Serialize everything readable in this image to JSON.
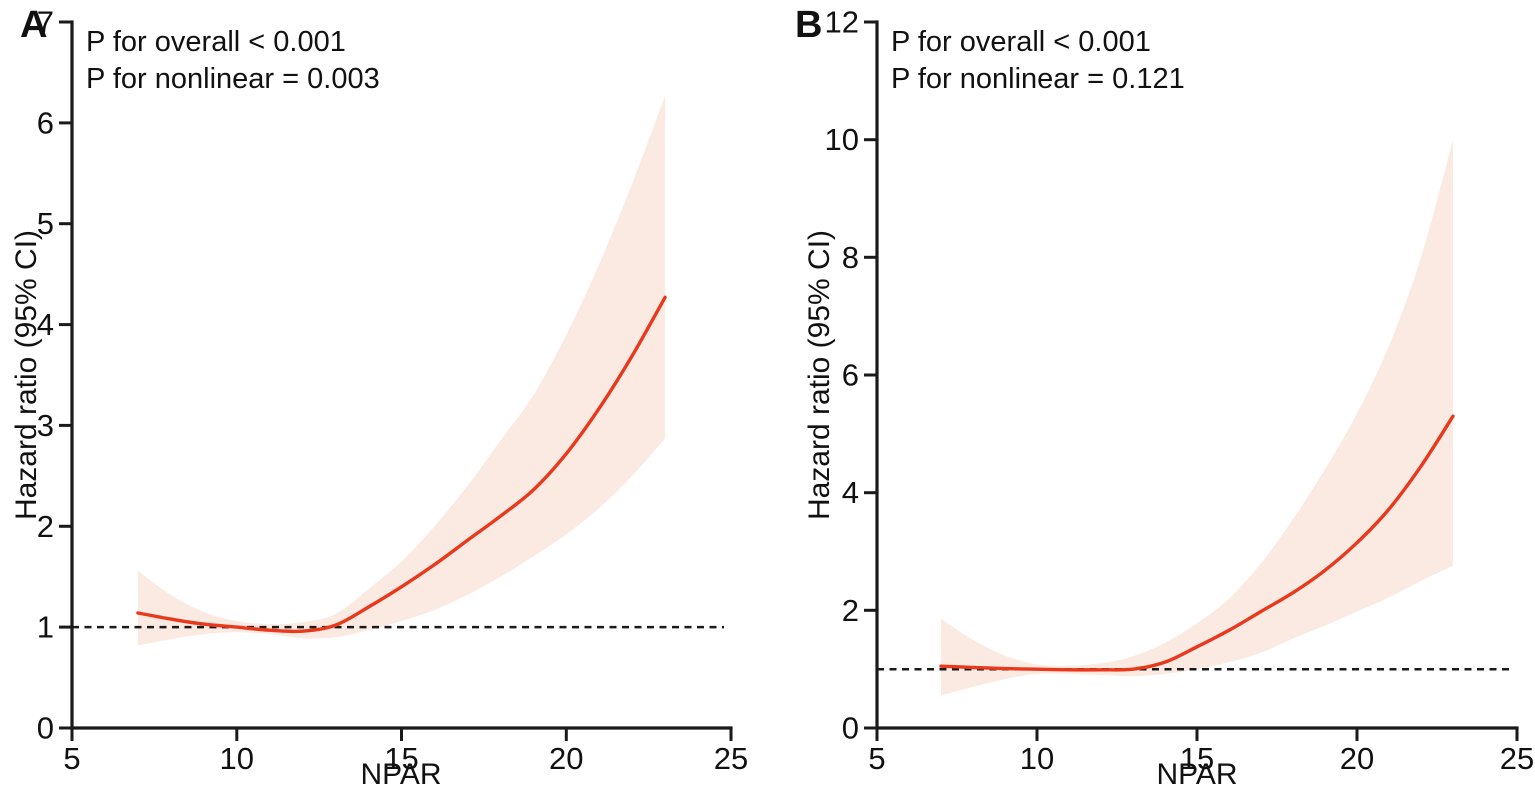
{
  "figure": {
    "background": "#ffffff"
  },
  "chart_data": [
    {
      "type": "line",
      "panel_label": "A",
      "annotations": [
        "P for overall < 0.001",
        "P for nonlinear = 0.003"
      ],
      "xlabel": "NPAR",
      "ylabel": "Hazard ratio (95% CI)",
      "xlim": [
        5,
        25
      ],
      "ylim": [
        0,
        7
      ],
      "xticks": [
        5,
        10,
        15,
        20,
        25
      ],
      "yticks": [
        0,
        1,
        2,
        3,
        4,
        5,
        6,
        7
      ],
      "reference_line_y": 1,
      "legend": "none",
      "grid": false,
      "x": [
        7,
        8,
        9,
        10,
        11,
        12,
        13,
        14,
        15,
        16,
        17,
        18,
        19,
        20,
        21,
        22,
        23
      ],
      "series": [
        {
          "name": "Hazard ratio",
          "values": [
            1.14,
            1.08,
            1.03,
            1.0,
            0.97,
            0.96,
            1.02,
            1.2,
            1.4,
            1.62,
            1.86,
            2.1,
            2.36,
            2.72,
            3.17,
            3.69,
            4.27
          ]
        },
        {
          "name": "95% CI lower",
          "values": [
            0.82,
            0.88,
            0.93,
            0.95,
            0.93,
            0.89,
            0.9,
            0.97,
            1.06,
            1.17,
            1.32,
            1.5,
            1.7,
            1.92,
            2.18,
            2.5,
            2.87
          ]
        },
        {
          "name": "95% CI upper",
          "values": [
            1.56,
            1.32,
            1.15,
            1.06,
            1.03,
            1.05,
            1.13,
            1.38,
            1.65,
            2.0,
            2.4,
            2.85,
            3.3,
            3.9,
            4.6,
            5.4,
            6.27
          ]
        }
      ],
      "colors": {
        "curve": "#e8391d",
        "band": "#fbeae2",
        "reference_line": "#1a1a1a",
        "axis": "#1a1a1a"
      }
    },
    {
      "type": "line",
      "panel_label": "B",
      "annotations": [
        "P for overall < 0.001",
        "P for nonlinear = 0.121"
      ],
      "xlabel": "NPAR",
      "ylabel": "Hazard ratio (95% CI)",
      "xlim": [
        5,
        25
      ],
      "ylim": [
        0,
        12
      ],
      "xticks": [
        5,
        10,
        15,
        20,
        25
      ],
      "yticks": [
        0,
        2,
        4,
        6,
        8,
        10,
        12
      ],
      "reference_line_y": 1,
      "legend": "none",
      "grid": false,
      "x": [
        7,
        8,
        9,
        10,
        11,
        12,
        13,
        14,
        15,
        16,
        17,
        18,
        19,
        20,
        21,
        22,
        23
      ],
      "series": [
        {
          "name": "Hazard ratio",
          "values": [
            1.05,
            1.03,
            1.01,
            1.0,
            0.99,
            0.99,
            1.0,
            1.12,
            1.38,
            1.66,
            1.98,
            2.3,
            2.68,
            3.15,
            3.72,
            4.45,
            5.3
          ]
        },
        {
          "name": "95% CI lower",
          "values": [
            0.55,
            0.7,
            0.83,
            0.92,
            0.92,
            0.9,
            0.88,
            0.92,
            1.0,
            1.12,
            1.28,
            1.52,
            1.74,
            1.98,
            2.22,
            2.5,
            2.76
          ]
        },
        {
          "name": "95% CI upper",
          "values": [
            1.86,
            1.5,
            1.23,
            1.08,
            1.06,
            1.1,
            1.22,
            1.45,
            1.78,
            2.2,
            2.8,
            3.55,
            4.4,
            5.35,
            6.5,
            8.0,
            10.0
          ]
        }
      ],
      "colors": {
        "curve": "#e8391d",
        "band": "#fbeae2",
        "reference_line": "#1a1a1a",
        "axis": "#1a1a1a"
      }
    }
  ]
}
